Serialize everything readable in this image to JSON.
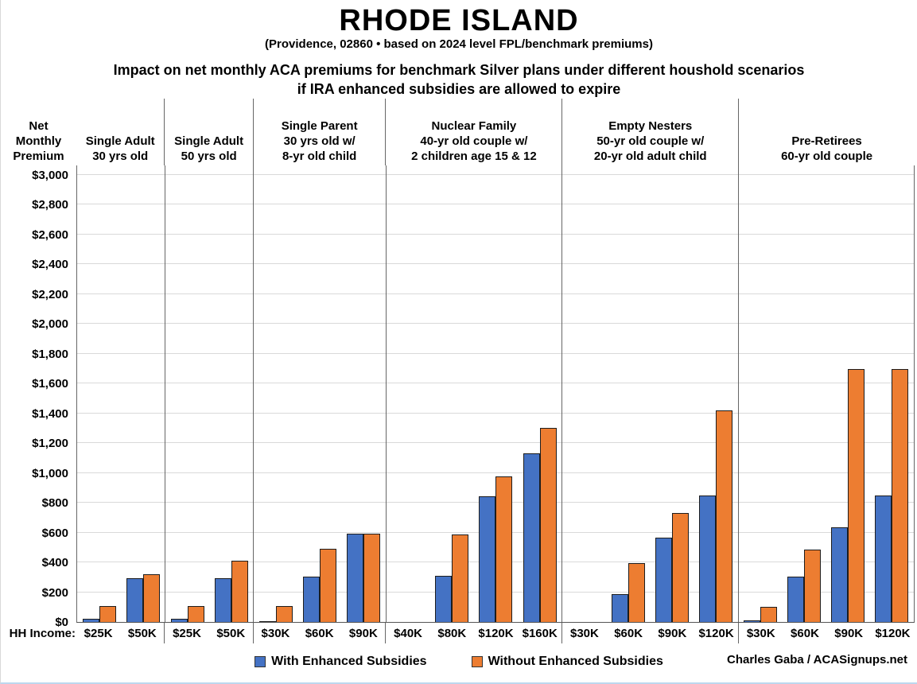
{
  "title": "RHODE ISLAND",
  "subtitle": "(Providence, 02860 • based on 2024 level FPL/benchmark premiums)",
  "heading_line1": "Impact on net monthly ACA premiums for benchmark Silver plans under different houshold scenarios",
  "heading_line2": "if IRA enhanced subsidies are allowed to expire",
  "y_axis_label_lines": [
    "Net",
    "Monthly",
    "Premium"
  ],
  "x_axis_label": "HH Income:",
  "credit": "Charles Gaba / ACASignups.net",
  "legend": [
    {
      "label": "With Enhanced Subsidies",
      "color": "#4472C4"
    },
    {
      "label": "Without Enhanced Subsidies",
      "color": "#ED7D31"
    }
  ],
  "chart_data": {
    "type": "bar",
    "title": "Impact on net monthly ACA premiums for benchmark Silver plans under different houshold scenarios if IRA enhanced subsidies are allowed to expire",
    "ylabel": "Net Monthly Premium",
    "xlabel": "HH Income",
    "ylim": [
      0,
      3000
    ],
    "ytick_step": 200,
    "grid": true,
    "legend_position": "bottom",
    "series_names": [
      "With Enhanced Subsidies",
      "Without Enhanced Subsidies"
    ],
    "groups": [
      {
        "label_lines": [
          "Single Adult",
          "30 yrs old"
        ],
        "categories": [
          "$25K",
          "$50K"
        ],
        "series": [
          {
            "name": "With Enhanced Subsidies",
            "values": [
              20,
              295
            ]
          },
          {
            "name": "Without Enhanced Subsidies",
            "values": [
              105,
              320
            ]
          }
        ]
      },
      {
        "label_lines": [
          "Single Adult",
          "50 yrs old"
        ],
        "categories": [
          "$25K",
          "$50K"
        ],
        "series": [
          {
            "name": "With Enhanced Subsidies",
            "values": [
              20,
              295
            ]
          },
          {
            "name": "Without Enhanced Subsidies",
            "values": [
              105,
              410
            ]
          }
        ]
      },
      {
        "label_lines": [
          "Single Parent",
          "30 yrs old w/",
          "8-yr old child"
        ],
        "categories": [
          "$30K",
          "$60K",
          "$90K"
        ],
        "series": [
          {
            "name": "With Enhanced Subsidies",
            "values": [
              8,
              305,
              590
            ]
          },
          {
            "name": "Without Enhanced Subsidies",
            "values": [
              105,
              490,
              590
            ]
          }
        ]
      },
      {
        "label_lines": [
          "Nuclear Family",
          "40-yr old couple w/",
          "2 children age 15 & 12"
        ],
        "categories": [
          "$40K",
          "$80K",
          "$120K",
          "$160K"
        ],
        "series": [
          {
            "name": "With Enhanced Subsidies",
            "values": [
              0,
              310,
              845,
              1130
            ]
          },
          {
            "name": "Without Enhanced Subsidies",
            "values": [
              0,
              585,
              975,
              1300
            ]
          }
        ]
      },
      {
        "label_lines": [
          "Empty Nesters",
          "50-yr old couple w/",
          "20-yr old adult child"
        ],
        "categories": [
          "$30K",
          "$60K",
          "$90K",
          "$120K"
        ],
        "series": [
          {
            "name": "With Enhanced Subsidies",
            "values": [
              0,
              185,
              565,
              850
            ]
          },
          {
            "name": "Without Enhanced Subsidies",
            "values": [
              0,
              395,
              730,
              1420
            ]
          }
        ]
      },
      {
        "label_lines": [
          "Pre-Retirees",
          "60-yr old couple"
        ],
        "categories": [
          "$30K",
          "$60K",
          "$90K",
          "$120K"
        ],
        "series": [
          {
            "name": "With Enhanced Subsidies",
            "values": [
              10,
              305,
              635,
              850
            ]
          },
          {
            "name": "Without Enhanced Subsidies",
            "values": [
              100,
              485,
              1695,
              1695
            ]
          }
        ]
      }
    ]
  }
}
